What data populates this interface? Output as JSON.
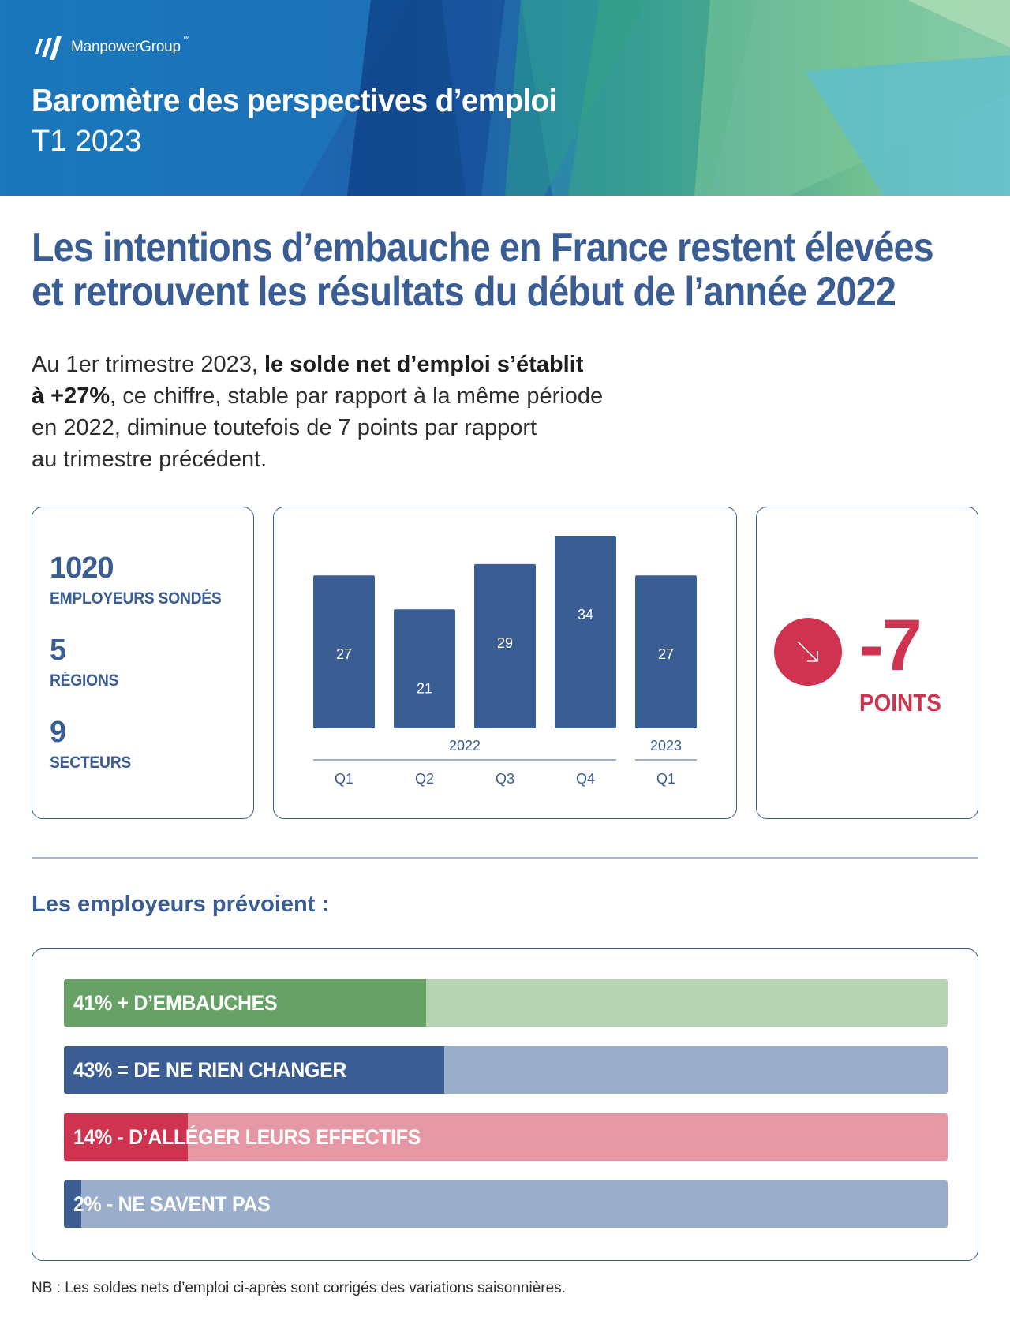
{
  "header": {
    "brand": "ManpowerGroup",
    "brand_mark": "™",
    "title": "Baromètre des perspectives d’emploi",
    "subtitle": "T1 2023",
    "colors": {
      "blue": "#1d5fa8",
      "green": "#6fbf8f",
      "teal": "#5ab9c9"
    }
  },
  "headline": {
    "line1": "Les intentions d’embauche en France restent élevées",
    "line2": "et retrouvent les résultats du début de l’année 2022"
  },
  "intro": {
    "part1": "Au 1er trimestre 2023, ",
    "bold1": "le solde net d’emploi s’établit",
    "bold2": "à +27%",
    "part2": ", ce chiffre, stable par rapport à la même période",
    "line3": "en 2022, diminue toutefois de 7 points par rapport",
    "line4": "au trimestre précédent."
  },
  "stats": [
    {
      "value": "1020",
      "label": "EMPLOYEURS SONDÉS"
    },
    {
      "value": "5",
      "label": "RÉGIONS"
    },
    {
      "value": "9",
      "label": "SECTEURS"
    }
  ],
  "chart_data": {
    "type": "bar",
    "categories": [
      "Q1",
      "Q2",
      "Q3",
      "Q4",
      "Q1"
    ],
    "groups": [
      {
        "label": "2022",
        "categories": [
          "Q1",
          "Q2",
          "Q3",
          "Q4"
        ]
      },
      {
        "label": "2023",
        "categories": [
          "Q1"
        ]
      }
    ],
    "values": [
      27,
      21,
      29,
      34,
      27
    ],
    "data_labels": [
      "27",
      "21",
      "29",
      "34",
      "27"
    ],
    "ylim": [
      0,
      34
    ],
    "grid": false,
    "color": "#3a5d94"
  },
  "change": {
    "value": "-7",
    "unit": "POINTS",
    "icon": "arrow-down-right-icon",
    "color": "#d0334f"
  },
  "section_title": "Les employeurs prévoient :",
  "forecast": [
    {
      "label": "41% + D’EMBAUCHES",
      "percent": 41,
      "fill": "#67a166",
      "track": "#b6d4b4"
    },
    {
      "label": "43% = DE NE RIEN CHANGER",
      "percent": 43,
      "fill": "#3a5d94",
      "track": "#9aaecb"
    },
    {
      "label": "14% - D’ALLÉGER LEURS EFFECTIFS",
      "percent": 14,
      "fill": "#d0334f",
      "track": "#e597a4"
    },
    {
      "label": "2% - NE SAVENT PAS",
      "percent": 2,
      "fill": "#3a5d94",
      "track": "#9aaecb"
    }
  ],
  "note": "NB : Les soldes nets d’emploi ci-après sont corrigés des variations saisonnières."
}
